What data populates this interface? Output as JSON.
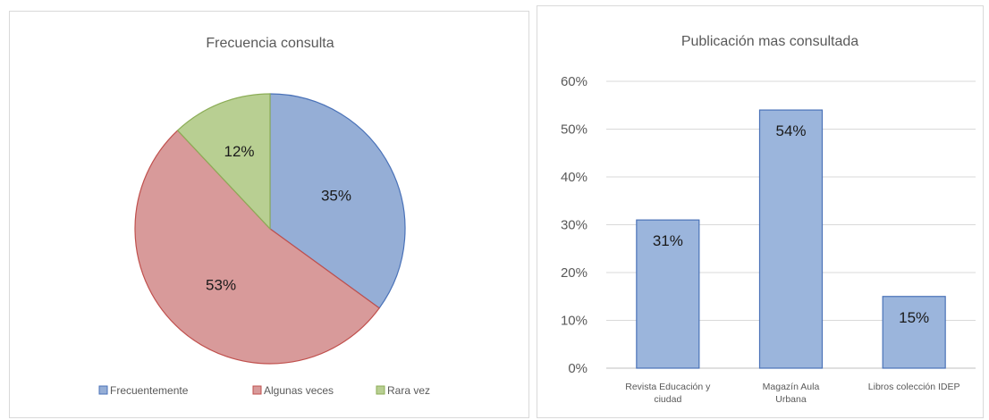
{
  "chart_data": [
    {
      "type": "pie",
      "title": "Frecuencia consulta",
      "slices": [
        {
          "label": "Frecuentemente",
          "value": 35,
          "display": "35%",
          "color": "#95aed6",
          "stroke": "#4a72b8"
        },
        {
          "label": "Algunas veces",
          "value": 53,
          "display": "53%",
          "color": "#d89a9a",
          "stroke": "#c0504d"
        },
        {
          "label": "Rara vez",
          "value": 12,
          "display": "12%",
          "color": "#b8cf92",
          "stroke": "#8cad57"
        }
      ],
      "legend_position": "bottom"
    },
    {
      "type": "bar",
      "title": "Publicación mas consultada",
      "categories": [
        [
          "Revista Educación y",
          "ciudad"
        ],
        [
          "Magazín Aula",
          "Urbana"
        ],
        [
          "Libros colección IDEP"
        ]
      ],
      "values": [
        31,
        54,
        15
      ],
      "data_labels": [
        "31%",
        "54%",
        "15%"
      ],
      "yticks": [
        "0%",
        "10%",
        "20%",
        "30%",
        "40%",
        "50%",
        "60%"
      ],
      "ylim": [
        0,
        60
      ],
      "grid": true,
      "bar_color": "#9bb5dc",
      "bar_stroke": "#4a72b8"
    }
  ]
}
